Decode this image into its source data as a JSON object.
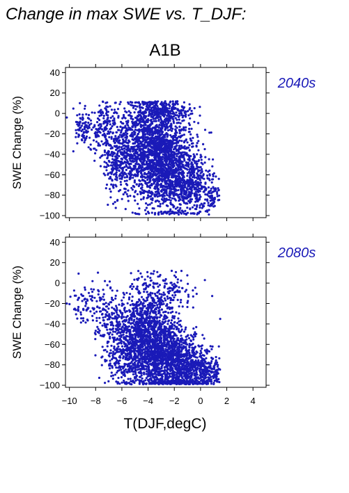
{
  "figure": {
    "title": "Change in max SWE vs. T_DJF:",
    "scenario": "A1B",
    "accent_color": "#1a1ab8",
    "xlabel": "T(DJF,degC)",
    "ylabel": "SWE Change (%)"
  },
  "chart_data": [
    {
      "type": "scatter",
      "period": "2040s",
      "xlabel": "T(DJF,degC)",
      "ylabel": "SWE Change (%)",
      "xlim": [
        -10.3,
        5.0
      ],
      "ylim": [
        -102,
        45
      ],
      "x_ticks": [
        -10,
        -8,
        -6,
        -4,
        -2,
        0,
        2,
        4
      ],
      "y_ticks": [
        40,
        20,
        0,
        -20,
        -40,
        -60,
        -80,
        -100
      ],
      "x_tick_labels_shown": false,
      "grid": false,
      "marker_color": "#1a1ab8",
      "clusters": [
        {
          "x": -9.0,
          "y": -15,
          "sx": 0.35,
          "sy": 8,
          "n": 60
        },
        {
          "x": -7.5,
          "y": -12,
          "sx": 0.7,
          "sy": 12,
          "n": 160
        },
        {
          "x": -6.0,
          "y": -42,
          "sx": 0.8,
          "sy": 20,
          "n": 460
        },
        {
          "x": -4.0,
          "y": -28,
          "sx": 0.9,
          "sy": 24,
          "n": 700
        },
        {
          "x": -3.0,
          "y": -45,
          "sx": 0.9,
          "sy": 25,
          "n": 750
        },
        {
          "x": -2.0,
          "y": -55,
          "sx": 1.0,
          "sy": 24,
          "n": 650
        },
        {
          "x": -3.0,
          "y": 3,
          "sx": 1.1,
          "sy": 5,
          "n": 240
        },
        {
          "x": -0.5,
          "y": -72,
          "sx": 0.8,
          "sy": 14,
          "n": 320
        },
        {
          "x": 1.0,
          "y": -82,
          "sx": 0.35,
          "sy": 6,
          "n": 50
        }
      ],
      "points_sample": [
        {
          "x": -10.2,
          "y": -4
        },
        {
          "x": -9.2,
          "y": 10
        },
        {
          "x": -1.8,
          "y": 10
        },
        {
          "x": 0.5,
          "y": -95
        },
        {
          "x": 1.4,
          "y": -64
        },
        {
          "x": 1.4,
          "y": -75
        },
        {
          "x": 0.9,
          "y": -88
        }
      ]
    },
    {
      "type": "scatter",
      "period": "2080s",
      "xlabel": "T(DJF,degC)",
      "ylabel": "SWE Change (%)",
      "xlim": [
        -10.3,
        5.0
      ],
      "ylim": [
        -102,
        45
      ],
      "x_ticks": [
        -10,
        -8,
        -6,
        -4,
        -2,
        0,
        2,
        4
      ],
      "y_ticks": [
        40,
        20,
        0,
        -20,
        -40,
        -60,
        -80,
        -100
      ],
      "x_tick_labels": [
        "−10",
        "−8",
        "−6",
        "−4",
        "−2",
        "0",
        "2",
        "4"
      ],
      "x_tick_labels_shown": true,
      "grid": false,
      "marker_color": "#1a1ab8",
      "clusters": [
        {
          "x": -8.8,
          "y": -20,
          "sx": 0.5,
          "sy": 8,
          "n": 60
        },
        {
          "x": -7.2,
          "y": -30,
          "sx": 0.6,
          "sy": 14,
          "n": 130
        },
        {
          "x": -5.5,
          "y": -62,
          "sx": 0.9,
          "sy": 20,
          "n": 560
        },
        {
          "x": -4.0,
          "y": -48,
          "sx": 1.0,
          "sy": 24,
          "n": 780
        },
        {
          "x": -3.0,
          "y": -70,
          "sx": 1.0,
          "sy": 20,
          "n": 760
        },
        {
          "x": -1.5,
          "y": -80,
          "sx": 1.0,
          "sy": 16,
          "n": 560
        },
        {
          "x": -2.8,
          "y": -10,
          "sx": 1.2,
          "sy": 10,
          "n": 140
        },
        {
          "x": -0.2,
          "y": -88,
          "sx": 0.9,
          "sy": 9,
          "n": 330
        },
        {
          "x": 1.0,
          "y": -87,
          "sx": 0.3,
          "sy": 6,
          "n": 40
        }
      ],
      "points_sample": [
        {
          "x": -10.2,
          "y": -20
        },
        {
          "x": -9.3,
          "y": 17
        },
        {
          "x": -2.2,
          "y": 12
        },
        {
          "x": 1.5,
          "y": -35
        },
        {
          "x": 1.4,
          "y": -62
        },
        {
          "x": 0.3,
          "y": -100
        }
      ]
    }
  ]
}
